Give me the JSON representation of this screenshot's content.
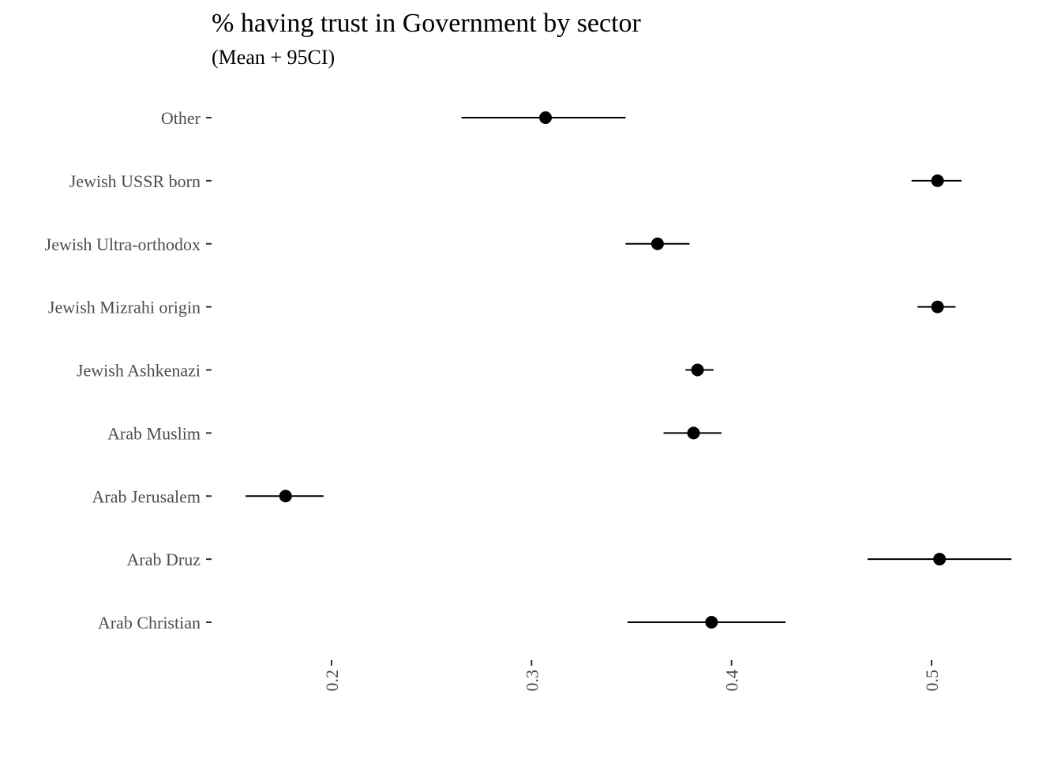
{
  "chart_data": {
    "type": "scatter",
    "title": "% having trust in Government by sector",
    "subtitle": "(Mean + 95CI)",
    "xlabel": "",
    "ylabel": "",
    "xlim": [
      0.14,
      0.545
    ],
    "x_ticks": [
      0.2,
      0.3,
      0.4,
      0.5
    ],
    "x_tick_labels": [
      "0.2",
      "0.3",
      "0.4",
      "0.5"
    ],
    "grid": false,
    "legend": "none",
    "categories": [
      "Other",
      "Jewish USSR born",
      "Jewish Ultra-orthodox",
      "Jewish Mizrahi origin",
      "Jewish Ashkenazi",
      "Arab Muslim",
      "Arab Jerusalem",
      "Arab Druz",
      "Arab Christian"
    ],
    "means": [
      0.307,
      0.503,
      0.363,
      0.503,
      0.383,
      0.381,
      0.177,
      0.504,
      0.39
    ],
    "ci_low": [
      0.265,
      0.49,
      0.347,
      0.493,
      0.377,
      0.366,
      0.157,
      0.468,
      0.348
    ],
    "ci_high": [
      0.347,
      0.515,
      0.379,
      0.512,
      0.391,
      0.395,
      0.196,
      0.54,
      0.427
    ]
  }
}
